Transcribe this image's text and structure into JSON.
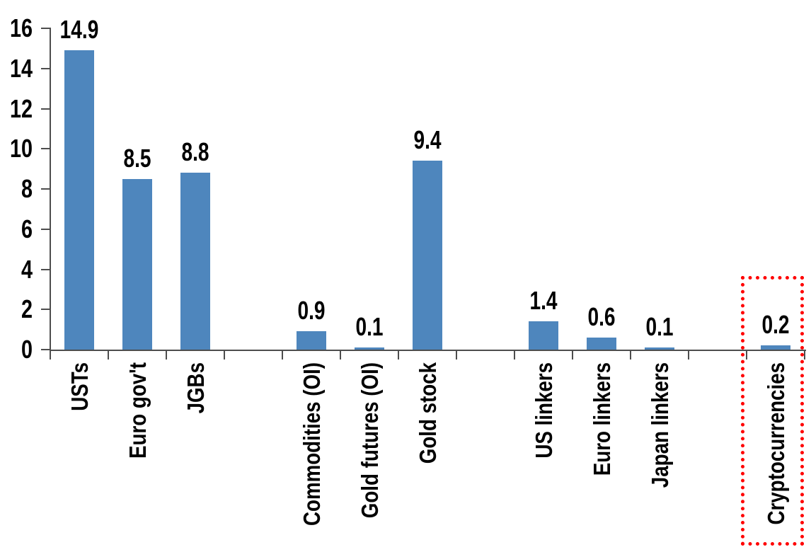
{
  "chart_data": {
    "type": "bar",
    "title": "",
    "xlabel": "",
    "ylabel": "",
    "categories": [
      "USTs",
      "Euro gov't",
      "JGBs",
      "Commodities (OI)",
      "Gold futures (OI)",
      "Gold stock",
      "US linkers",
      "Euro linkers",
      "Japan linkers",
      "Cryptocurrencies"
    ],
    "values": [
      14.9,
      8.5,
      8.8,
      0.9,
      0.1,
      9.4,
      1.4,
      0.6,
      0.1,
      0.2
    ],
    "data_labels": [
      "14.9",
      "8.5",
      "8.8",
      "0.9",
      "0.1",
      "9.4",
      "1.4",
      "0.6",
      "0.1",
      "0.2"
    ],
    "slot_indices": [
      0,
      1,
      2,
      4,
      5,
      6,
      8,
      9,
      10,
      12
    ],
    "total_slots": 13,
    "ylim": [
      0,
      16
    ],
    "yticks": [
      0,
      2,
      4,
      6,
      8,
      10,
      12,
      14,
      16
    ],
    "grid": false,
    "legend": "none",
    "bar_color": "#4E86BD",
    "axis_color": "#4d4d4d",
    "text_color": "#000000",
    "background": "#FFFFFF",
    "highlight": {
      "category": "Cryptocurrencies",
      "style": "red-dotted-box",
      "color": "#FF0000"
    }
  }
}
